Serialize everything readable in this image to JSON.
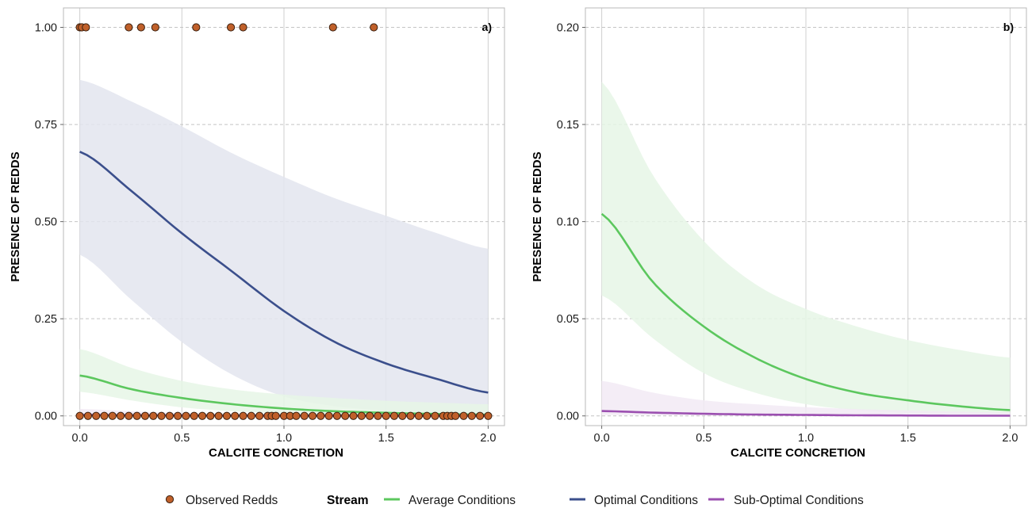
{
  "chart_data": [
    {
      "panel_label": "a)",
      "type": "line",
      "xlabel": "CALCITE CONCRETION",
      "ylabel": "PRESENCE OF REDDS",
      "xlim": [
        -0.08,
        2.08
      ],
      "ylim": [
        -0.025,
        1.05
      ],
      "xticks": [
        0.0,
        0.5,
        1.0,
        1.5,
        2.0
      ],
      "xtick_labels": [
        "0.0",
        "0.5",
        "1.0",
        "1.5",
        "2.0"
      ],
      "yticks": [
        0.0,
        0.25,
        0.5,
        0.75,
        1.0
      ],
      "ytick_labels": [
        "0.00",
        "0.25",
        "0.50",
        "0.75",
        "1.00"
      ],
      "grid": true,
      "series": [
        {
          "name": "Optimal Conditions",
          "color": "#3b4f8c",
          "band_color": "#e3e5ee",
          "x": [
            0.0,
            0.25,
            0.5,
            0.75,
            1.0,
            1.25,
            1.5,
            1.75,
            2.0
          ],
          "y": [
            0.68,
            0.58,
            0.47,
            0.37,
            0.27,
            0.19,
            0.135,
            0.095,
            0.06
          ],
          "lower": [
            0.415,
            0.3,
            0.19,
            0.105,
            0.05,
            0.025,
            0.014,
            0.009,
            0.005
          ],
          "upper": [
            0.865,
            0.81,
            0.745,
            0.675,
            0.615,
            0.56,
            0.515,
            0.47,
            0.43
          ]
        },
        {
          "name": "Average Conditions",
          "color": "#5cc75e",
          "band_color": "#e6f6e6",
          "x": [
            0.0,
            0.25,
            0.5,
            0.75,
            1.0,
            1.25,
            1.5,
            1.75,
            2.0
          ],
          "y": [
            0.104,
            0.069,
            0.046,
            0.03,
            0.019,
            0.012,
            0.008,
            0.005,
            0.003
          ],
          "lower": [
            0.062,
            0.04,
            0.022,
            0.012,
            0.006,
            0.003,
            0.0015,
            0.0008,
            0.0004
          ],
          "upper": [
            0.172,
            0.124,
            0.09,
            0.068,
            0.055,
            0.046,
            0.039,
            0.034,
            0.03
          ]
        },
        {
          "name": "Sub-Optimal Conditions",
          "color": "#9b4fb0",
          "band_color": "#f2eaf5",
          "x": [
            0.0,
            0.25,
            0.5,
            0.75,
            1.0,
            1.25,
            1.5,
            1.75,
            2.0
          ],
          "y": [
            0.0025,
            0.0017,
            0.0011,
            0.0007,
            0.0005,
            0.0003,
            0.0002,
            0.0001,
            0.0001
          ],
          "lower": [
            0.0005,
            0.0003,
            0.0002,
            0.0001,
            0.0001,
            0.0,
            0.0,
            0.0,
            0.0
          ],
          "upper": [
            0.018,
            0.012,
            0.008,
            0.006,
            0.0045,
            0.0035,
            0.0028,
            0.0022,
            0.0018
          ]
        }
      ],
      "observed_redds": {
        "name": "Observed Redds",
        "color": "#c0602a",
        "x_at_1": [
          0.0,
          0.01,
          0.03,
          0.24,
          0.3,
          0.37,
          0.57,
          0.74,
          0.8,
          1.24,
          1.44
        ],
        "x_at_0": [
          0.0,
          0.04,
          0.08,
          0.12,
          0.16,
          0.2,
          0.24,
          0.28,
          0.32,
          0.36,
          0.4,
          0.44,
          0.48,
          0.52,
          0.56,
          0.6,
          0.64,
          0.68,
          0.72,
          0.76,
          0.8,
          0.84,
          0.88,
          0.92,
          0.94,
          0.96,
          1.0,
          1.03,
          1.06,
          1.1,
          1.14,
          1.18,
          1.22,
          1.26,
          1.3,
          1.34,
          1.38,
          1.42,
          1.46,
          1.5,
          1.54,
          1.58,
          1.62,
          1.66,
          1.7,
          1.74,
          1.78,
          1.8,
          1.82,
          1.84,
          1.88,
          1.92,
          1.96,
          2.0
        ]
      }
    },
    {
      "panel_label": "b)",
      "type": "line",
      "xlabel": "CALCITE CONCRETION",
      "ylabel": "PRESENCE OF REDDS",
      "xlim": [
        -0.08,
        2.08
      ],
      "ylim": [
        -0.005,
        0.21
      ],
      "xticks": [
        0.0,
        0.5,
        1.0,
        1.5,
        2.0
      ],
      "xtick_labels": [
        "0.0",
        "0.5",
        "1.0",
        "1.5",
        "2.0"
      ],
      "yticks": [
        0.0,
        0.05,
        0.1,
        0.15,
        0.2
      ],
      "ytick_labels": [
        "0.00",
        "0.05",
        "0.10",
        "0.15",
        "0.20"
      ],
      "grid": true,
      "series": [
        {
          "name": "Average Conditions",
          "color": "#5cc75e",
          "band_color": "#e6f6e6",
          "x": [
            0.0,
            0.25,
            0.5,
            0.75,
            1.0,
            1.25,
            1.5,
            1.75,
            2.0
          ],
          "y": [
            0.104,
            0.069,
            0.046,
            0.03,
            0.019,
            0.012,
            0.008,
            0.005,
            0.003
          ],
          "lower": [
            0.062,
            0.04,
            0.022,
            0.012,
            0.006,
            0.003,
            0.0015,
            0.0008,
            0.0004
          ],
          "upper": [
            0.172,
            0.124,
            0.09,
            0.068,
            0.055,
            0.046,
            0.039,
            0.034,
            0.03
          ]
        },
        {
          "name": "Sub-Optimal Conditions",
          "color": "#9b4fb0",
          "band_color": "#f2eaf5",
          "x": [
            0.0,
            0.25,
            0.5,
            0.75,
            1.0,
            1.25,
            1.5,
            1.75,
            2.0
          ],
          "y": [
            0.0025,
            0.0017,
            0.0011,
            0.0007,
            0.0005,
            0.0003,
            0.0002,
            0.0001,
            0.0001
          ],
          "lower": [
            0.0005,
            0.0003,
            0.0002,
            0.0001,
            0.0001,
            0.0,
            0.0,
            0.0,
            0.0
          ],
          "upper": [
            0.018,
            0.012,
            0.008,
            0.006,
            0.0045,
            0.0035,
            0.0028,
            0.0022,
            0.0018
          ]
        }
      ]
    }
  ],
  "legend": {
    "placement": "bottom",
    "points_label": "Observed Redds",
    "group_title": "Stream",
    "items": [
      {
        "label": "Average Conditions",
        "color": "#5cc75e"
      },
      {
        "label": "Optimal Conditions",
        "color": "#3b4f8c"
      },
      {
        "label": "Sub-Optimal Conditions",
        "color": "#9b4fb0"
      }
    ]
  }
}
